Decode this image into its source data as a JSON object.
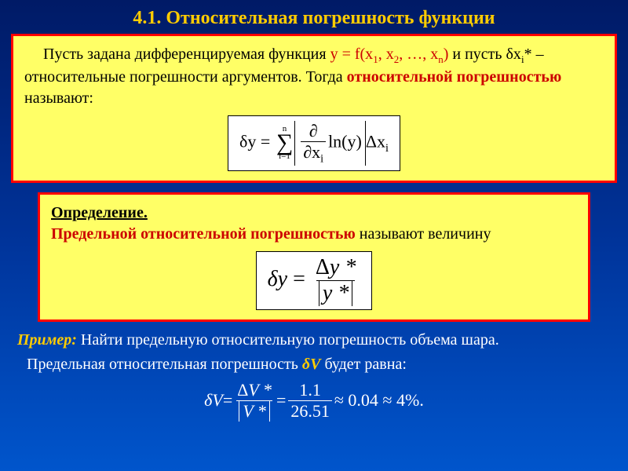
{
  "title": "4.1. Относительная погрешность функции",
  "box1": {
    "t1": "Пусть задана дифференцируемая функция  ",
    "fn": "y = f(x",
    "fn2": ", x",
    "fn3": ", …, x",
    "fn4": ")",
    "t2": " и пусть δx",
    "t3": "* – относительные погрешности аргументов. Тогда ",
    "term": "относительной погрешностью",
    "t4": " называют:",
    "sub1": "1",
    "sub2": "2",
    "subn": "n",
    "subi": "i",
    "formula": {
      "lhs": "δy",
      "eq": " = ",
      "sumtop": "n",
      "sumbot": "i=1",
      "dnum": "∂",
      "dden": "∂x",
      "ln": "ln(y)",
      "dx": "Δx"
    }
  },
  "box2": {
    "head": "Определение.",
    "term": "Предельной относительной погрешностью",
    "t1": " называют величину",
    "formula": {
      "lhs": "δy",
      "eq": " = ",
      "num": "Δy *",
      "den": "y *"
    }
  },
  "example": {
    "head": "Пример:",
    "t1": " Найти предельную относительную погрешность объема шара.",
    "t2": "Предельная относительная погрешность ",
    "dv": "δV",
    "t3": " будет равна:",
    "eq": {
      "lhs": "δV",
      "eq1": " = ",
      "num1": "ΔV *",
      "den1": "V *",
      "eq2": " = ",
      "num2": "1.1",
      "den2": "26.51",
      "approx1": " ≈ 0.04 ≈ 4%."
    }
  },
  "colors": {
    "bg_top": "#001a66",
    "bg_mid": "#003399",
    "bg_bot": "#0055cc",
    "title": "#ffcc00",
    "box_bg": "#ffff66",
    "box_border": "#ff0000",
    "term": "#cc0000",
    "text_white": "#ffffff",
    "text_black": "#000000"
  }
}
